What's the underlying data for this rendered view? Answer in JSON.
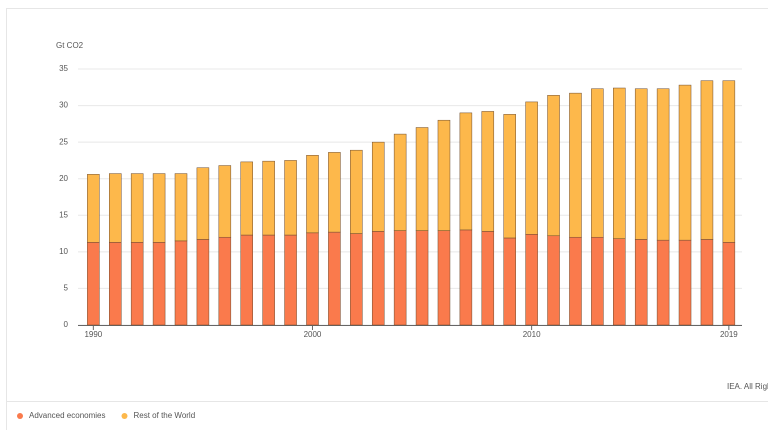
{
  "chart_data": {
    "type": "stacked-bar",
    "y_label": "Gt CO2",
    "source": "IEA. All Right",
    "x": [
      1990,
      1991,
      1992,
      1993,
      1994,
      1995,
      1996,
      1997,
      1998,
      1999,
      2000,
      2001,
      2002,
      2003,
      2004,
      2005,
      2006,
      2007,
      2008,
      2009,
      2010,
      2011,
      2012,
      2013,
      2014,
      2015,
      2016,
      2017,
      2018,
      2019
    ],
    "xlim": [
      1989.3,
      2019.6
    ],
    "xticks": [
      1990,
      2000,
      2010,
      2019
    ],
    "ylim": [
      0,
      35
    ],
    "yticks": [
      0,
      5,
      10,
      15,
      20,
      25,
      30,
      35
    ],
    "grid": true,
    "legend": "bottom-left",
    "series": [
      {
        "name": "Advanced economies",
        "color": "#fa7a4c",
        "values": [
          11.3,
          11.3,
          11.3,
          11.3,
          11.5,
          11.7,
          12.0,
          12.3,
          12.3,
          12.3,
          12.6,
          12.7,
          12.5,
          12.8,
          12.9,
          12.9,
          12.9,
          13.0,
          12.8,
          11.9,
          12.4,
          12.2,
          12.0,
          12.0,
          11.8,
          11.7,
          11.6,
          11.6,
          11.7,
          11.3
        ]
      },
      {
        "name": "Rest of the World",
        "color": "#fdb84b",
        "values": [
          9.3,
          9.4,
          9.4,
          9.4,
          9.2,
          9.8,
          9.8,
          10.0,
          10.1,
          10.2,
          10.6,
          10.9,
          11.4,
          12.2,
          13.2,
          14.1,
          15.1,
          16.0,
          16.4,
          16.9,
          18.1,
          19.2,
          19.7,
          20.3,
          20.6,
          20.6,
          20.7,
          21.2,
          21.7,
          22.1
        ]
      }
    ]
  }
}
